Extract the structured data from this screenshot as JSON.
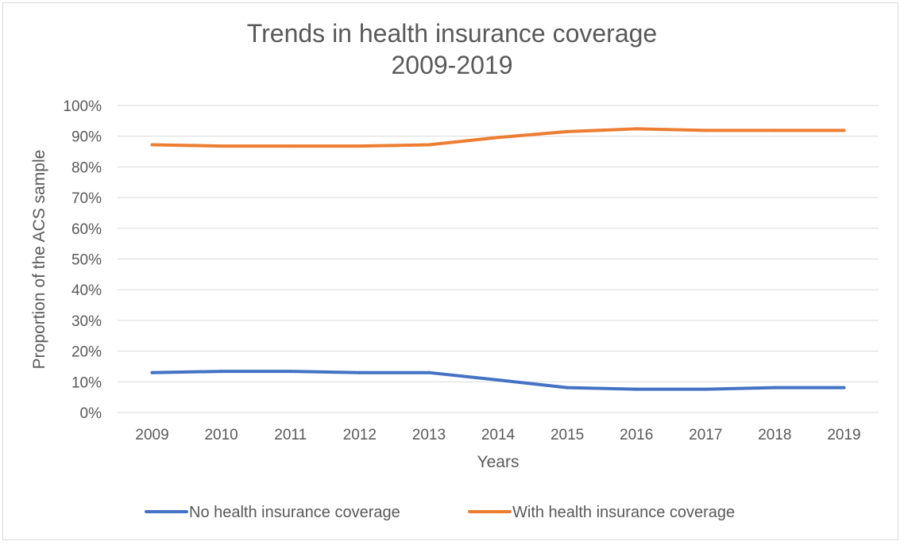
{
  "chart_data": {
    "type": "line",
    "title": [
      "Trends in health insurance coverage",
      "2009-2019"
    ],
    "xlabel": "Years",
    "ylabel": "Proportion of the ACS sample",
    "categories": [
      "2009",
      "2010",
      "2011",
      "2012",
      "2013",
      "2014",
      "2015",
      "2016",
      "2017",
      "2018",
      "2019"
    ],
    "ylim": [
      0,
      100
    ],
    "yticks": [
      "0%",
      "10%",
      "20%",
      "30%",
      "40%",
      "50%",
      "60%",
      "70%",
      "80%",
      "90%",
      "100%"
    ],
    "grid": true,
    "legend_position": "bottom",
    "series": [
      {
        "name": "No health insurance coverage",
        "color": "#4472c4",
        "values": [
          13,
          13.4,
          13.4,
          13,
          13,
          10.6,
          8.1,
          7.6,
          7.6,
          8.1,
          8.1
        ]
      },
      {
        "name": "With health insurance coverage",
        "color": "#ed7d31",
        "values": [
          87.2,
          86.8,
          86.8,
          86.8,
          87.2,
          89.6,
          91.5,
          92.4,
          91.9,
          91.9,
          91.9
        ]
      }
    ]
  }
}
